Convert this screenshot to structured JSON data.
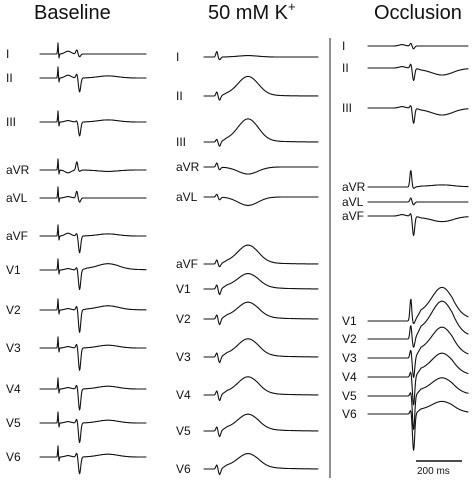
{
  "panels": [
    {
      "title": "Baseline",
      "title_sup": "",
      "leads": [
        {
          "label": "I",
          "p": 0.2,
          "q": 0.0,
          "r": 0.3,
          "s": -0.2,
          "st": 0.0,
          "t": 0.0,
          "spike": 1
        },
        {
          "label": "II",
          "p": 0.2,
          "q": 0.0,
          "r": 0.3,
          "s": -1.0,
          "st": 0.0,
          "t": 0.15,
          "spike": 1
        },
        {
          "label": "III",
          "p": 0.1,
          "q": 0.0,
          "r": 0.1,
          "s": -1.0,
          "st": 0.0,
          "t": 0.15,
          "spike": 1
        },
        {
          "label": "aVR",
          "p": -0.2,
          "q": 0.0,
          "r": 0.6,
          "s": -0.1,
          "st": 0.0,
          "t": -0.1,
          "spike": 1
        },
        {
          "label": "aVL",
          "p": 0.1,
          "q": 0.0,
          "r": 0.5,
          "s": -0.3,
          "st": 0.0,
          "t": 0.0,
          "spike": 1
        },
        {
          "label": "aVF",
          "p": 0.2,
          "q": 0.0,
          "r": 0.2,
          "s": -1.2,
          "st": 0.0,
          "t": 0.15,
          "spike": 1
        },
        {
          "label": "V1",
          "p": 0.1,
          "q": 0.0,
          "r": 0.2,
          "s": -1.4,
          "st": 0.1,
          "t": 0.35,
          "spike": 1
        },
        {
          "label": "V2",
          "p": 0.1,
          "q": 0.0,
          "r": 0.3,
          "s": -1.6,
          "st": 0.05,
          "t": 0.25,
          "spike": 1
        },
        {
          "label": "V3",
          "p": 0.1,
          "q": 0.0,
          "r": 0.3,
          "s": -1.6,
          "st": 0.0,
          "t": 0.2,
          "spike": 1
        },
        {
          "label": "V4",
          "p": 0.1,
          "q": 0.0,
          "r": 0.3,
          "s": -1.5,
          "st": 0.0,
          "t": 0.2,
          "spike": 1
        },
        {
          "label": "V5",
          "p": 0.1,
          "q": 0.0,
          "r": 0.3,
          "s": -1.4,
          "st": 0.0,
          "t": 0.2,
          "spike": 1
        },
        {
          "label": "V6",
          "p": 0.1,
          "q": 0.0,
          "r": 0.3,
          "s": -1.2,
          "st": 0.0,
          "t": 0.2,
          "spike": 1
        }
      ]
    },
    {
      "title": "50 mM K",
      "title_sup": "+",
      "leads": [
        {
          "label": "I",
          "p": 0.0,
          "q": 0.0,
          "r": 0.4,
          "s": -0.2,
          "st": 0.0,
          "t": 0.1,
          "spike": 1
        },
        {
          "label": "II",
          "p": 0.0,
          "q": 0.0,
          "r": 0.3,
          "s": -0.3,
          "st": 0.1,
          "t": 1.3,
          "spike": 1
        },
        {
          "label": "III",
          "p": 0.0,
          "q": 0.0,
          "r": 0.2,
          "s": -0.3,
          "st": 0.15,
          "t": 1.5,
          "spike": 1
        },
        {
          "label": "aVR",
          "p": 0.0,
          "q": 0.0,
          "r": 0.3,
          "s": -0.2,
          "st": 0.0,
          "t": -0.5,
          "spike": 1
        },
        {
          "label": "aVL",
          "p": 0.0,
          "q": 0.0,
          "r": 0.2,
          "s": -0.2,
          "st": 0.0,
          "t": -0.6,
          "spike": 1
        },
        {
          "label": "aVF",
          "p": 0.0,
          "q": 0.0,
          "r": 0.3,
          "s": -0.2,
          "st": 0.15,
          "t": 1.2,
          "spike": 1
        },
        {
          "label": "V1",
          "p": 0.0,
          "q": 0.0,
          "r": 0.3,
          "s": -0.4,
          "st": 0.2,
          "t": 0.9,
          "spike": 1
        },
        {
          "label": "V2",
          "p": 0.0,
          "q": 0.0,
          "r": 0.3,
          "s": -0.4,
          "st": 0.2,
          "t": 1.0,
          "spike": 1
        },
        {
          "label": "V3",
          "p": 0.0,
          "q": 0.0,
          "r": 0.3,
          "s": -0.4,
          "st": 0.2,
          "t": 1.1,
          "spike": 1
        },
        {
          "label": "V4",
          "p": 0.0,
          "q": 0.0,
          "r": 0.3,
          "s": -0.4,
          "st": 0.2,
          "t": 1.1,
          "spike": 1
        },
        {
          "label": "V5",
          "p": 0.0,
          "q": 0.0,
          "r": 0.3,
          "s": -0.4,
          "st": 0.2,
          "t": 1.0,
          "spike": 1
        },
        {
          "label": "V6",
          "p": 0.0,
          "q": 0.0,
          "r": 0.3,
          "s": -0.4,
          "st": 0.2,
          "t": 0.9,
          "spike": 1
        }
      ]
    },
    {
      "title": "Occlusion",
      "title_sup": "",
      "leads": [
        {
          "label": "I",
          "p": 0.1,
          "q": 0.0,
          "r": 0.2,
          "s": -0.2,
          "st": 0.0,
          "t": 0.0,
          "spike": 0
        },
        {
          "label": "II",
          "p": 0.1,
          "q": 0.0,
          "r": 0.3,
          "s": -0.9,
          "st": -0.1,
          "t": -0.4,
          "spike": 0
        },
        {
          "label": "III",
          "p": 0.1,
          "q": 0.0,
          "r": 0.2,
          "s": -1.1,
          "st": -0.1,
          "t": -0.4,
          "spike": 0
        },
        {
          "label": "aVR",
          "p": 0.0,
          "q": 0.0,
          "r": 1.2,
          "s": -0.1,
          "st": 0.05,
          "t": 0.1,
          "spike": 0
        },
        {
          "label": "aVL",
          "p": 0.0,
          "q": 0.0,
          "r": 0.3,
          "s": -0.2,
          "st": 0.0,
          "t": 0.0,
          "spike": 0
        },
        {
          "label": "aVF",
          "p": 0.1,
          "q": 0.0,
          "r": 0.2,
          "s": -1.4,
          "st": -0.1,
          "t": -0.3,
          "spike": 0
        },
        {
          "label": "V1",
          "p": 0.0,
          "q": 0.0,
          "r": 1.6,
          "s": -0.2,
          "st": 0.6,
          "t": 1.8,
          "spike": 0
        },
        {
          "label": "V2",
          "p": 0.0,
          "q": 0.0,
          "r": 1.0,
          "s": -0.6,
          "st": 0.7,
          "t": 2.0,
          "spike": 0
        },
        {
          "label": "V3",
          "p": 0.0,
          "q": 0.0,
          "r": 0.6,
          "s": -1.4,
          "st": 0.6,
          "t": 1.6,
          "spike": 0
        },
        {
          "label": "V4",
          "p": 0.0,
          "q": 0.0,
          "r": 0.4,
          "s": -2.0,
          "st": 0.5,
          "t": 1.2,
          "spike": 0
        },
        {
          "label": "V5",
          "p": 0.0,
          "q": 0.0,
          "r": 0.3,
          "s": -2.4,
          "st": 0.4,
          "t": 0.9,
          "spike": 0
        },
        {
          "label": "V6",
          "p": 0.0,
          "q": 0.0,
          "r": 0.3,
          "s": -2.6,
          "st": 0.3,
          "t": 0.6,
          "spike": 0
        }
      ]
    }
  ],
  "scale_bar": {
    "label": "200 ms"
  },
  "colors": {
    "trace": "#111111",
    "background": "#ffffff"
  }
}
